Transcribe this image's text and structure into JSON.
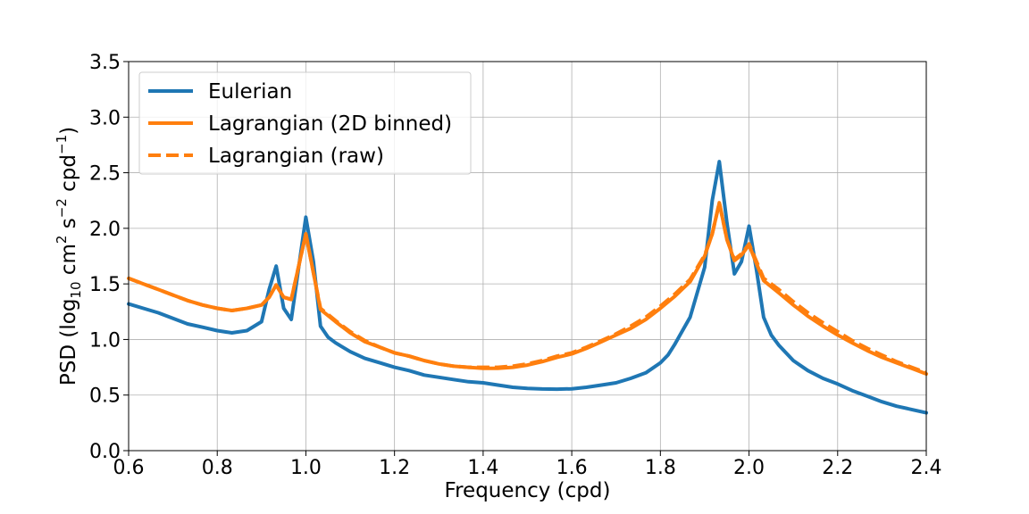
{
  "chart_data": {
    "type": "line",
    "xlabel": "Frequency (cpd)",
    "ylabel": {
      "prefix": "PSD (log",
      "sub": "10",
      "mid1": " cm",
      "sup1": "2",
      "mid2": " s",
      "sup2": "−2",
      "mid3": " cpd",
      "sup3": "−1",
      "suffix": ")"
    },
    "xlim": [
      0.6,
      2.4
    ],
    "ylim": [
      0.0,
      3.5
    ],
    "xticks": [
      0.6,
      0.8,
      1.0,
      1.2,
      1.4,
      1.6,
      1.8,
      2.0,
      2.2,
      2.4
    ],
    "xtick_labels": [
      "0.6",
      "0.8",
      "1.0",
      "1.2",
      "1.4",
      "1.6",
      "1.8",
      "2.0",
      "2.2",
      "2.4"
    ],
    "yticks": [
      0.0,
      0.5,
      1.0,
      1.5,
      2.0,
      2.5,
      3.0,
      3.5
    ],
    "ytick_labels": [
      "0.0",
      "0.5",
      "1.0",
      "1.5",
      "2.0",
      "2.5",
      "3.0",
      "3.5"
    ],
    "grid": true,
    "legend_position": "top-left",
    "series": [
      {
        "name": "Eulerian",
        "color": "#1f77b4",
        "style": "solid",
        "x": [
          0.6,
          0.633,
          0.667,
          0.7,
          0.733,
          0.767,
          0.8,
          0.833,
          0.867,
          0.9,
          0.917,
          0.933,
          0.95,
          0.967,
          1.0,
          1.017,
          1.033,
          1.05,
          1.067,
          1.1,
          1.133,
          1.167,
          1.2,
          1.233,
          1.267,
          1.3,
          1.333,
          1.367,
          1.4,
          1.433,
          1.467,
          1.5,
          1.533,
          1.567,
          1.6,
          1.633,
          1.667,
          1.7,
          1.733,
          1.767,
          1.8,
          1.817,
          1.833,
          1.85,
          1.867,
          1.9,
          1.917,
          1.933,
          1.95,
          1.967,
          1.983,
          2.0,
          2.017,
          2.033,
          2.05,
          2.067,
          2.1,
          2.133,
          2.167,
          2.2,
          2.233,
          2.267,
          2.3,
          2.333,
          2.367,
          2.4
        ],
        "y": [
          1.32,
          1.28,
          1.24,
          1.19,
          1.14,
          1.11,
          1.08,
          1.06,
          1.08,
          1.16,
          1.45,
          1.66,
          1.28,
          1.18,
          2.1,
          1.7,
          1.12,
          1.02,
          0.97,
          0.89,
          0.83,
          0.79,
          0.75,
          0.72,
          0.68,
          0.66,
          0.64,
          0.62,
          0.61,
          0.59,
          0.57,
          0.56,
          0.555,
          0.553,
          0.556,
          0.57,
          0.59,
          0.61,
          0.65,
          0.7,
          0.79,
          0.86,
          0.96,
          1.08,
          1.2,
          1.65,
          2.25,
          2.6,
          2.05,
          1.59,
          1.7,
          2.02,
          1.62,
          1.2,
          1.04,
          0.95,
          0.81,
          0.72,
          0.65,
          0.6,
          0.54,
          0.49,
          0.44,
          0.4,
          0.37,
          0.34
        ]
      },
      {
        "name": "Lagrangian (2D binned)",
        "color": "#ff7f0e",
        "style": "solid",
        "x": [
          0.6,
          0.633,
          0.667,
          0.7,
          0.733,
          0.767,
          0.8,
          0.833,
          0.867,
          0.9,
          0.917,
          0.933,
          0.95,
          0.967,
          1.0,
          1.017,
          1.033,
          1.067,
          1.1,
          1.133,
          1.167,
          1.2,
          1.233,
          1.267,
          1.3,
          1.333,
          1.367,
          1.4,
          1.433,
          1.467,
          1.5,
          1.533,
          1.567,
          1.6,
          1.633,
          1.667,
          1.7,
          1.733,
          1.767,
          1.8,
          1.833,
          1.867,
          1.9,
          1.917,
          1.933,
          1.95,
          1.967,
          1.983,
          2.0,
          2.017,
          2.033,
          2.067,
          2.1,
          2.133,
          2.167,
          2.2,
          2.233,
          2.267,
          2.3,
          2.333,
          2.367,
          2.4
        ],
        "y": [
          1.55,
          1.5,
          1.45,
          1.4,
          1.35,
          1.31,
          1.28,
          1.26,
          1.28,
          1.31,
          1.38,
          1.49,
          1.38,
          1.36,
          1.95,
          1.6,
          1.27,
          1.16,
          1.06,
          0.98,
          0.93,
          0.88,
          0.85,
          0.81,
          0.78,
          0.76,
          0.75,
          0.74,
          0.74,
          0.75,
          0.77,
          0.8,
          0.84,
          0.87,
          0.92,
          0.98,
          1.04,
          1.1,
          1.18,
          1.28,
          1.39,
          1.52,
          1.75,
          1.95,
          2.23,
          1.9,
          1.71,
          1.76,
          1.85,
          1.68,
          1.53,
          1.42,
          1.31,
          1.21,
          1.12,
          1.04,
          0.97,
          0.9,
          0.84,
          0.79,
          0.74,
          0.69
        ]
      },
      {
        "name": "Lagrangian (raw)",
        "color": "#ff7f0e",
        "style": "dashed",
        "x": [
          0.6,
          0.633,
          0.667,
          0.7,
          0.733,
          0.767,
          0.8,
          0.833,
          0.867,
          0.9,
          0.917,
          0.933,
          0.95,
          0.967,
          1.0,
          1.017,
          1.033,
          1.067,
          1.1,
          1.133,
          1.167,
          1.2,
          1.233,
          1.267,
          1.3,
          1.333,
          1.367,
          1.4,
          1.433,
          1.467,
          1.5,
          1.533,
          1.567,
          1.6,
          1.633,
          1.667,
          1.7,
          1.733,
          1.767,
          1.8,
          1.833,
          1.867,
          1.9,
          1.917,
          1.933,
          1.95,
          1.967,
          1.983,
          2.0,
          2.017,
          2.033,
          2.067,
          2.1,
          2.133,
          2.167,
          2.2,
          2.233,
          2.267,
          2.3,
          2.333,
          2.367,
          2.4
        ],
        "y": [
          1.55,
          1.5,
          1.45,
          1.4,
          1.35,
          1.31,
          1.28,
          1.26,
          1.28,
          1.31,
          1.38,
          1.49,
          1.38,
          1.36,
          1.95,
          1.6,
          1.28,
          1.17,
          1.07,
          0.99,
          0.93,
          0.88,
          0.85,
          0.81,
          0.78,
          0.76,
          0.75,
          0.75,
          0.75,
          0.76,
          0.78,
          0.81,
          0.85,
          0.88,
          0.93,
          0.99,
          1.05,
          1.12,
          1.2,
          1.3,
          1.41,
          1.54,
          1.76,
          1.95,
          2.23,
          1.9,
          1.72,
          1.77,
          1.86,
          1.7,
          1.55,
          1.45,
          1.34,
          1.24,
          1.15,
          1.07,
          0.99,
          0.92,
          0.86,
          0.8,
          0.75,
          0.7
        ]
      }
    ]
  }
}
